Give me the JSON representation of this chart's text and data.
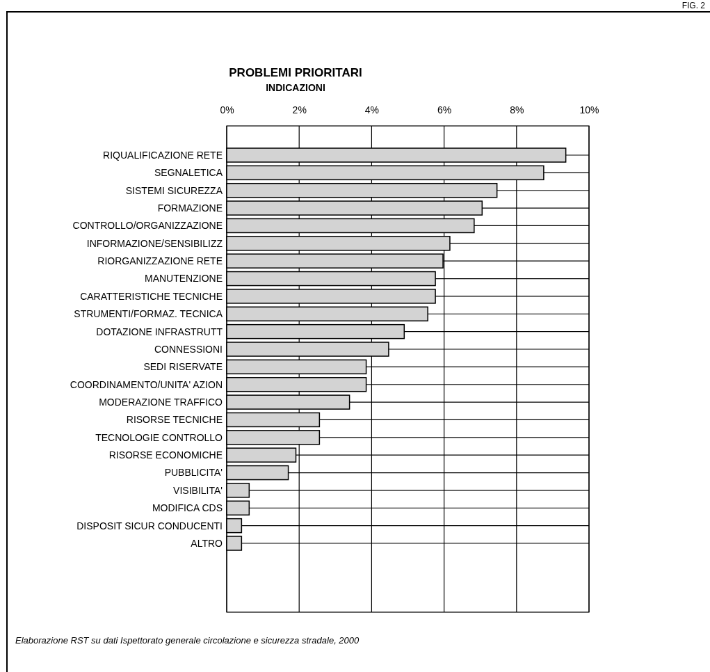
{
  "chart_data": {
    "type": "bar",
    "orientation": "horizontal",
    "title": "PROBLEMI PRIORITARI",
    "subtitle": "INDICAZIONI",
    "categories": [
      "RIQUALIFICAZIONE RETE",
      "SEGNALETICA",
      "SISTEMI SICUREZZA",
      "FORMAZIONE",
      "CONTROLLO/ORGANIZZAZIONE",
      "INFORMAZIONE/SENSIBILIZZ",
      "RIORGANIZZAZIONE RETE",
      "MANUTENZIONE",
      "CARATTERISTICHE TECNICHE",
      "STRUMENTI/FORMAZ. TECNICA",
      "DOTAZIONE INFRASTRUTT",
      "CONNESSIONI",
      "SEDI RISERVATE",
      "COORDINAMENTO/UNITA' AZION",
      "MODERAZIONE TRAFFICO",
      "RISORSE TECNICHE",
      "TECNOLOGIE CONTROLLO",
      "RISORSE ECONOMICHE",
      "PUBBLICITA'",
      "VISIBILITA'",
      "MODIFICA CDS",
      "DISPOSIT SICUR CONDUCENTI",
      "ALTRO"
    ],
    "values": [
      9.36,
      8.75,
      7.46,
      7.05,
      6.83,
      6.16,
      5.97,
      5.76,
      5.76,
      5.55,
      4.9,
      4.47,
      3.85,
      3.85,
      3.39,
      2.56,
      2.56,
      1.91,
      1.7,
      0.62,
      0.62,
      0.41,
      0.41
    ],
    "color": "#d3d3d3",
    "xlim": [
      0,
      10
    ],
    "xticks": [
      {
        "value": 0,
        "label": "0%"
      },
      {
        "value": 2,
        "label": "2%"
      },
      {
        "value": 4,
        "label": "4%"
      },
      {
        "value": 6,
        "label": "6%"
      },
      {
        "value": 8,
        "label": "8%"
      },
      {
        "value": 10,
        "label": "10%"
      }
    ],
    "grid": true,
    "annotations": [
      "Elaborazione RST su dati Ispettorato generale circolazione e sicurezza stradale, 2000",
      "FIG. 2"
    ]
  }
}
